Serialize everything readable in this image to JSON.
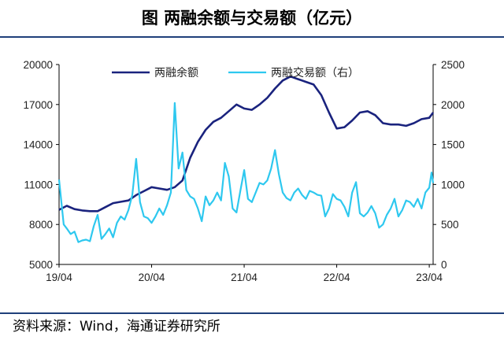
{
  "title": "图  两融余额与交易额（亿元）",
  "source": "资料来源：Wind，海通证券研究所",
  "colors": {
    "balance": "#1a237e",
    "volume": "#2ec8ef",
    "axis": "#000000",
    "rule": "#1f3f7a"
  },
  "chart_data": {
    "type": "line",
    "title": "两融余额与交易额（亿元）",
    "x_ticks": [
      "19/04",
      "20/04",
      "21/04",
      "22/04",
      "23/04"
    ],
    "y_left": {
      "ticks": [
        "5000",
        "8000",
        "11000",
        "14000",
        "17000",
        "20000"
      ],
      "range": [
        5000,
        20000
      ]
    },
    "y_right": {
      "ticks": [
        "0",
        "500",
        "1000",
        "1500",
        "2000",
        "2500"
      ],
      "range": [
        0,
        2500
      ]
    },
    "x_range": [
      0,
      48.5
    ],
    "series": [
      {
        "name": "两融余额",
        "axis": "left",
        "points": [
          [
            0,
            9100
          ],
          [
            1,
            9400
          ],
          [
            2,
            9150
          ],
          [
            3,
            9050
          ],
          [
            4,
            9000
          ],
          [
            5,
            9000
          ],
          [
            6,
            9300
          ],
          [
            7,
            9600
          ],
          [
            8,
            9700
          ],
          [
            9,
            9800
          ],
          [
            10,
            10200
          ],
          [
            11,
            10500
          ],
          [
            12,
            10800
          ],
          [
            13,
            10700
          ],
          [
            14,
            10600
          ],
          [
            15,
            10800
          ],
          [
            16,
            11300
          ],
          [
            17,
            13000
          ],
          [
            18,
            14200
          ],
          [
            19,
            15100
          ],
          [
            20,
            15700
          ],
          [
            21,
            16000
          ],
          [
            22,
            16500
          ],
          [
            23,
            17000
          ],
          [
            24,
            16700
          ],
          [
            25,
            16600
          ],
          [
            26,
            17000
          ],
          [
            27,
            17500
          ],
          [
            28,
            18200
          ],
          [
            29,
            18800
          ],
          [
            30,
            19100
          ],
          [
            31,
            18900
          ],
          [
            32,
            18700
          ],
          [
            33,
            18500
          ],
          [
            34,
            17700
          ],
          [
            35,
            16400
          ],
          [
            36,
            15200
          ],
          [
            37,
            15300
          ],
          [
            38,
            15800
          ],
          [
            39,
            16400
          ],
          [
            40,
            16500
          ],
          [
            41,
            16200
          ],
          [
            42,
            15600
          ],
          [
            43,
            15500
          ],
          [
            44,
            15500
          ],
          [
            45,
            15400
          ],
          [
            46,
            15600
          ],
          [
            47,
            15900
          ],
          [
            48,
            16000
          ],
          [
            48.5,
            16400
          ]
        ]
      },
      {
        "name": "两融交易额（右）",
        "axis": "right",
        "points": [
          [
            0,
            1060
          ],
          [
            0.6,
            500
          ],
          [
            1,
            450
          ],
          [
            1.5,
            380
          ],
          [
            2,
            410
          ],
          [
            2.5,
            280
          ],
          [
            3,
            300
          ],
          [
            3.5,
            310
          ],
          [
            4,
            290
          ],
          [
            4.5,
            480
          ],
          [
            5,
            620
          ],
          [
            5.5,
            320
          ],
          [
            6,
            380
          ],
          [
            6.5,
            450
          ],
          [
            7,
            340
          ],
          [
            7.5,
            520
          ],
          [
            8,
            600
          ],
          [
            8.5,
            560
          ],
          [
            9,
            680
          ],
          [
            9.5,
            870
          ],
          [
            10,
            1320
          ],
          [
            10.5,
            780
          ],
          [
            11,
            600
          ],
          [
            11.5,
            580
          ],
          [
            12,
            520
          ],
          [
            12.5,
            600
          ],
          [
            13,
            700
          ],
          [
            13.5,
            620
          ],
          [
            14,
            740
          ],
          [
            14.5,
            900
          ],
          [
            15,
            2020
          ],
          [
            15.5,
            1200
          ],
          [
            16,
            1400
          ],
          [
            16.5,
            930
          ],
          [
            17,
            850
          ],
          [
            17.5,
            820
          ],
          [
            18,
            700
          ],
          [
            18.5,
            540
          ],
          [
            19,
            850
          ],
          [
            19.5,
            740
          ],
          [
            20,
            800
          ],
          [
            20.5,
            900
          ],
          [
            21,
            800
          ],
          [
            21.5,
            1270
          ],
          [
            22,
            1100
          ],
          [
            22.5,
            700
          ],
          [
            23,
            650
          ],
          [
            23.5,
            920
          ],
          [
            24,
            1180
          ],
          [
            24.5,
            820
          ],
          [
            25,
            780
          ],
          [
            25.5,
            900
          ],
          [
            26,
            1020
          ],
          [
            26.5,
            1000
          ],
          [
            27,
            1050
          ],
          [
            27.5,
            1200
          ],
          [
            28,
            1430
          ],
          [
            28.5,
            1130
          ],
          [
            29,
            900
          ],
          [
            29.5,
            830
          ],
          [
            30,
            800
          ],
          [
            30.5,
            900
          ],
          [
            31,
            950
          ],
          [
            31.5,
            870
          ],
          [
            32,
            820
          ],
          [
            32.5,
            920
          ],
          [
            33,
            900
          ],
          [
            33.5,
            870
          ],
          [
            34,
            860
          ],
          [
            34.5,
            600
          ],
          [
            35,
            700
          ],
          [
            35.5,
            880
          ],
          [
            36,
            820
          ],
          [
            36.5,
            800
          ],
          [
            37,
            720
          ],
          [
            37.5,
            600
          ],
          [
            38,
            900
          ],
          [
            38.5,
            1030
          ],
          [
            39,
            640
          ],
          [
            39.5,
            600
          ],
          [
            40,
            650
          ],
          [
            40.5,
            730
          ],
          [
            41,
            640
          ],
          [
            41.5,
            460
          ],
          [
            42,
            500
          ],
          [
            42.5,
            620
          ],
          [
            43,
            700
          ],
          [
            43.5,
            820
          ],
          [
            44,
            600
          ],
          [
            44.5,
            680
          ],
          [
            45,
            800
          ],
          [
            45.5,
            780
          ],
          [
            46,
            720
          ],
          [
            46.5,
            820
          ],
          [
            47,
            700
          ],
          [
            47.5,
            900
          ],
          [
            48,
            960
          ],
          [
            48.3,
            1150
          ],
          [
            48.5,
            1020
          ]
        ]
      }
    ]
  }
}
